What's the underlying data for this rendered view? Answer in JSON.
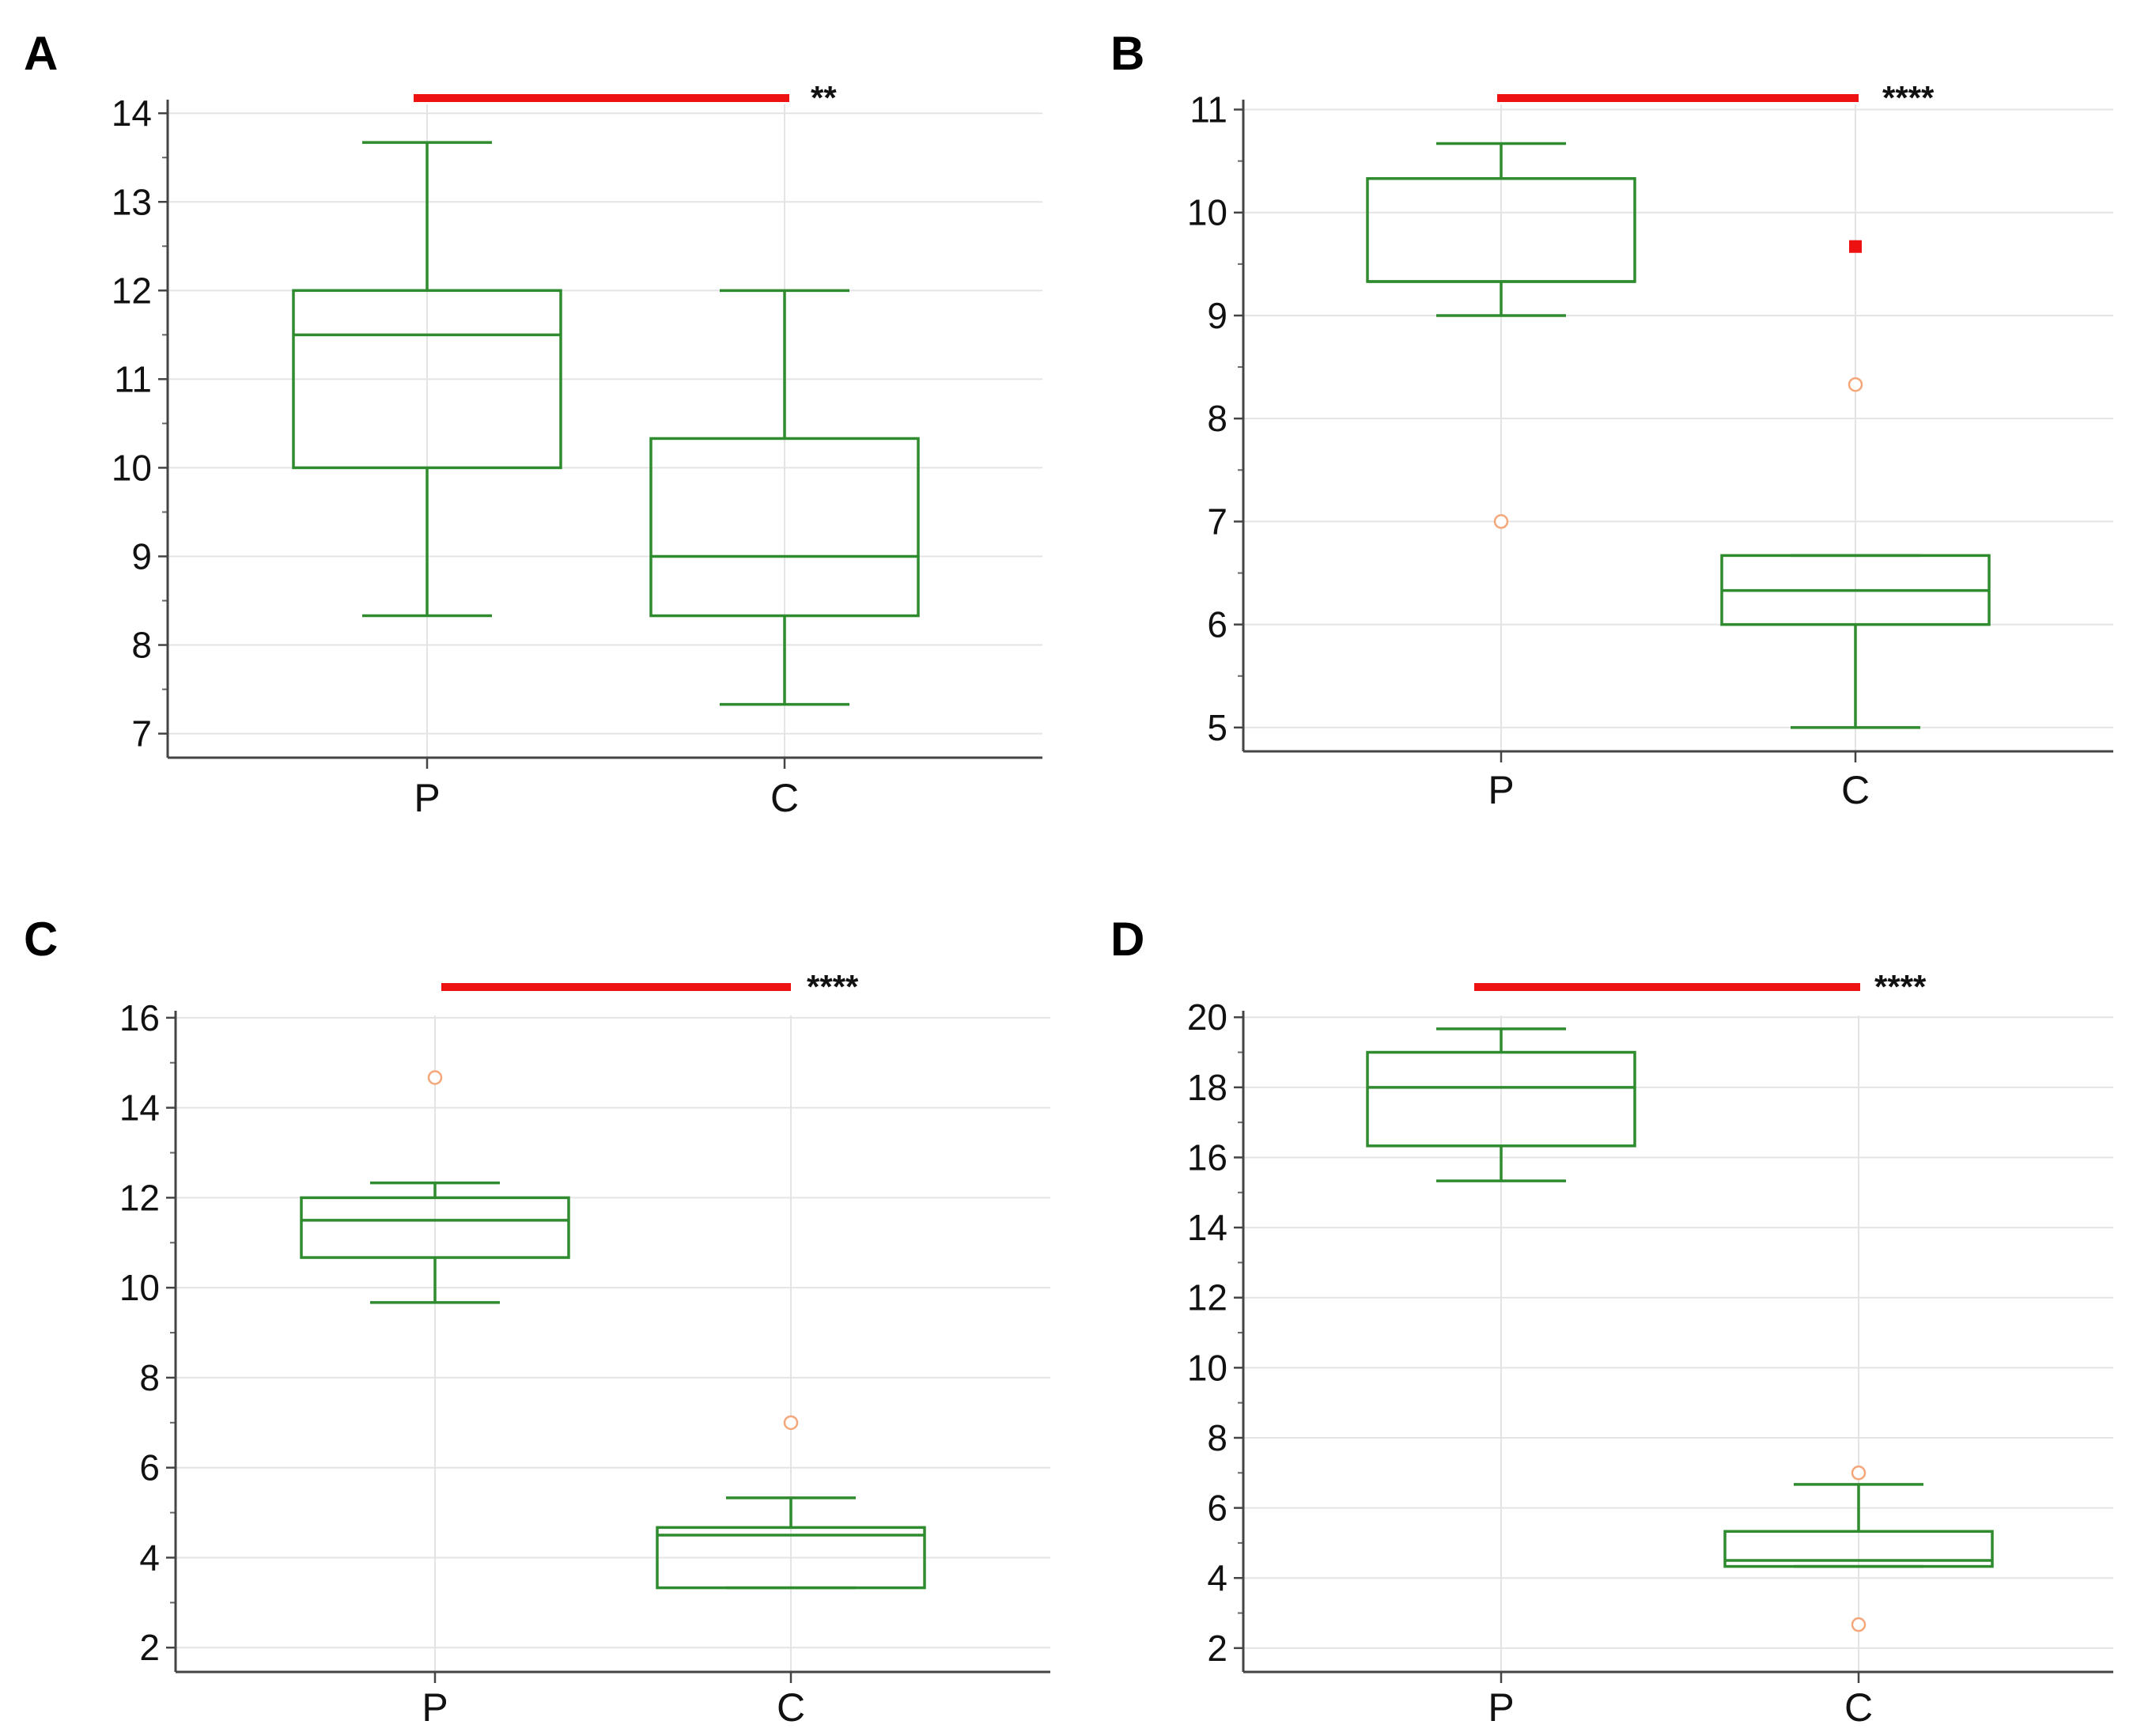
{
  "chart_data": [
    {
      "type": "box",
      "panel": "A",
      "categories": [
        "P",
        "C"
      ],
      "yticks": [
        "7",
        "8",
        "9",
        "10",
        "11",
        "12",
        "13",
        "14"
      ],
      "ylim": [
        6.8,
        14.1
      ],
      "boxes": [
        {
          "category": "P",
          "whisker_low": 8.33,
          "q1": 10,
          "median": 11.5,
          "q3": 12,
          "whisker_high": 13.67,
          "outliers": [],
          "far_outliers": []
        },
        {
          "category": "C",
          "whisker_low": 7.33,
          "q1": 8.33,
          "median": 9,
          "q3": 10.33,
          "whisker_high": 12,
          "outliers": [],
          "far_outliers": []
        }
      ],
      "significance": "**",
      "colors": {
        "box": "#2e8b2e",
        "bar": "#ee1111",
        "outlier": "#f4a77a",
        "far_outlier": "#ee1111"
      }
    },
    {
      "type": "box",
      "panel": "B",
      "categories": [
        "P",
        "C"
      ],
      "yticks": [
        "5",
        "6",
        "7",
        "8",
        "9",
        "10",
        "11"
      ],
      "ylim": [
        4.83,
        11.05
      ],
      "boxes": [
        {
          "category": "P",
          "whisker_low": 9,
          "q1": 9.33,
          "median": 9.33,
          "q3": 10.33,
          "whisker_high": 10.67,
          "outliers": [
            7
          ],
          "far_outliers": []
        },
        {
          "category": "C",
          "whisker_low": 5,
          "q1": 6,
          "median": 6.33,
          "q3": 6.67,
          "whisker_high": 6.67,
          "outliers": [
            8.33
          ],
          "far_outliers": [
            9.67
          ]
        }
      ],
      "significance": "****",
      "colors": {
        "box": "#2e8b2e",
        "bar": "#ee1111",
        "outlier": "#f4a77a",
        "far_outlier": "#ee1111"
      }
    },
    {
      "type": "box",
      "panel": "C",
      "categories": [
        "P",
        "C"
      ],
      "yticks": [
        "2",
        "4",
        "6",
        "8",
        "10",
        "12",
        "14",
        "16"
      ],
      "ylim": [
        1.6,
        16.05
      ],
      "boxes": [
        {
          "category": "P",
          "whisker_low": 9.67,
          "q1": 10.67,
          "median": 11.5,
          "q3": 12,
          "whisker_high": 12.33,
          "outliers": [
            14.67
          ],
          "far_outliers": []
        },
        {
          "category": "C",
          "whisker_low": 3.33,
          "q1": 3.33,
          "median": 4.5,
          "q3": 4.67,
          "whisker_high": 5.33,
          "outliers": [
            7
          ],
          "far_outliers": []
        }
      ],
      "significance": "****",
      "colors": {
        "box": "#2e8b2e",
        "bar": "#ee1111",
        "outlier": "#f4a77a",
        "far_outlier": "#ee1111"
      }
    },
    {
      "type": "box",
      "panel": "D",
      "categories": [
        "P",
        "C"
      ],
      "yticks": [
        "2",
        "4",
        "6",
        "8",
        "10",
        "12",
        "14",
        "16",
        "18",
        "20"
      ],
      "ylim": [
        1.5,
        20.05
      ],
      "boxes": [
        {
          "category": "P",
          "whisker_low": 15.33,
          "q1": 16.33,
          "median": 18,
          "q3": 19,
          "whisker_high": 19.67,
          "outliers": [],
          "far_outliers": []
        },
        {
          "category": "C",
          "whisker_low": 4.33,
          "q1": 4.33,
          "median": 4.5,
          "q3": 5.33,
          "whisker_high": 6.67,
          "outliers": [
            7,
            2.67
          ],
          "far_outliers": []
        }
      ],
      "significance": "****",
      "colors": {
        "box": "#2e8b2e",
        "bar": "#ee1111",
        "outlier": "#f4a77a",
        "far_outlier": "#ee1111"
      }
    }
  ]
}
